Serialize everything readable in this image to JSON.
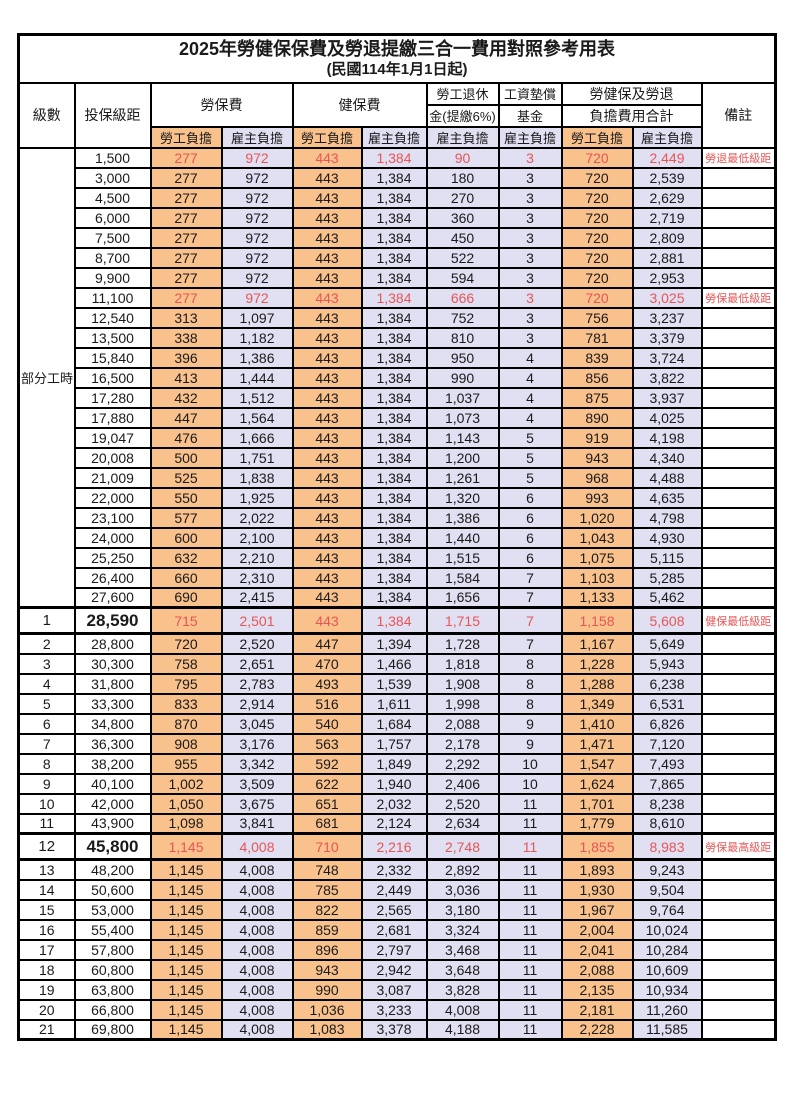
{
  "title": "2025年勞健保保費及勞退提繳三合一費用對照參考用表",
  "subtitle": "(民國114年1月1日起)",
  "header": {
    "level": "級數",
    "bracket": "投保級距",
    "labor_group": "勞保費",
    "health_group": "健保費",
    "pension_line1": "勞工退休",
    "pension_line2": "金(提繳6%)",
    "wage_fund_line1": "工資墊償",
    "wage_fund_line2": "基金",
    "total_line1": "勞健保及勞退",
    "total_line2": "負擔費用合計",
    "remark": "備註",
    "employee": "勞工負擔",
    "employer": "雇主負擔"
  },
  "part_time_label": "部分工時",
  "colors": {
    "employee_bg": "#F9C18C",
    "employer_bg": "#E1DFF2",
    "highlight_text": "#E85555",
    "border": "#000000"
  },
  "rows": [
    {
      "level": null,
      "bracket": "1,500",
      "values": [
        "277",
        "972",
        "443",
        "1,384",
        "90",
        "3",
        "720",
        "2,449"
      ],
      "remark": "勞退最低級距",
      "highlight": true,
      "big": false
    },
    {
      "level": null,
      "bracket": "3,000",
      "values": [
        "277",
        "972",
        "443",
        "1,384",
        "180",
        "3",
        "720",
        "2,539"
      ],
      "remark": "",
      "highlight": false,
      "big": false
    },
    {
      "level": null,
      "bracket": "4,500",
      "values": [
        "277",
        "972",
        "443",
        "1,384",
        "270",
        "3",
        "720",
        "2,629"
      ],
      "remark": "",
      "highlight": false,
      "big": false
    },
    {
      "level": null,
      "bracket": "6,000",
      "values": [
        "277",
        "972",
        "443",
        "1,384",
        "360",
        "3",
        "720",
        "2,719"
      ],
      "remark": "",
      "highlight": false,
      "big": false
    },
    {
      "level": null,
      "bracket": "7,500",
      "values": [
        "277",
        "972",
        "443",
        "1,384",
        "450",
        "3",
        "720",
        "2,809"
      ],
      "remark": "",
      "highlight": false,
      "big": false
    },
    {
      "level": null,
      "bracket": "8,700",
      "values": [
        "277",
        "972",
        "443",
        "1,384",
        "522",
        "3",
        "720",
        "2,881"
      ],
      "remark": "",
      "highlight": false,
      "big": false
    },
    {
      "level": null,
      "bracket": "9,900",
      "values": [
        "277",
        "972",
        "443",
        "1,384",
        "594",
        "3",
        "720",
        "2,953"
      ],
      "remark": "",
      "highlight": false,
      "big": false
    },
    {
      "level": null,
      "bracket": "11,100",
      "values": [
        "277",
        "972",
        "443",
        "1,384",
        "666",
        "3",
        "720",
        "3,025"
      ],
      "remark": "勞保最低級距",
      "highlight": true,
      "big": false
    },
    {
      "level": null,
      "bracket": "12,540",
      "values": [
        "313",
        "1,097",
        "443",
        "1,384",
        "752",
        "3",
        "756",
        "3,237"
      ],
      "remark": "",
      "highlight": false,
      "big": false
    },
    {
      "level": null,
      "bracket": "13,500",
      "values": [
        "338",
        "1,182",
        "443",
        "1,384",
        "810",
        "3",
        "781",
        "3,379"
      ],
      "remark": "",
      "highlight": false,
      "big": false
    },
    {
      "level": null,
      "bracket": "15,840",
      "values": [
        "396",
        "1,386",
        "443",
        "1,384",
        "950",
        "4",
        "839",
        "3,724"
      ],
      "remark": "",
      "highlight": false,
      "big": false
    },
    {
      "level": null,
      "bracket": "16,500",
      "values": [
        "413",
        "1,444",
        "443",
        "1,384",
        "990",
        "4",
        "856",
        "3,822"
      ],
      "remark": "",
      "highlight": false,
      "big": false
    },
    {
      "level": null,
      "bracket": "17,280",
      "values": [
        "432",
        "1,512",
        "443",
        "1,384",
        "1,037",
        "4",
        "875",
        "3,937"
      ],
      "remark": "",
      "highlight": false,
      "big": false
    },
    {
      "level": null,
      "bracket": "17,880",
      "values": [
        "447",
        "1,564",
        "443",
        "1,384",
        "1,073",
        "4",
        "890",
        "4,025"
      ],
      "remark": "",
      "highlight": false,
      "big": false
    },
    {
      "level": null,
      "bracket": "19,047",
      "values": [
        "476",
        "1,666",
        "443",
        "1,384",
        "1,143",
        "5",
        "919",
        "4,198"
      ],
      "remark": "",
      "highlight": false,
      "big": false
    },
    {
      "level": null,
      "bracket": "20,008",
      "values": [
        "500",
        "1,751",
        "443",
        "1,384",
        "1,200",
        "5",
        "943",
        "4,340"
      ],
      "remark": "",
      "highlight": false,
      "big": false
    },
    {
      "level": null,
      "bracket": "21,009",
      "values": [
        "525",
        "1,838",
        "443",
        "1,384",
        "1,261",
        "5",
        "968",
        "4,488"
      ],
      "remark": "",
      "highlight": false,
      "big": false
    },
    {
      "level": null,
      "bracket": "22,000",
      "values": [
        "550",
        "1,925",
        "443",
        "1,384",
        "1,320",
        "6",
        "993",
        "4,635"
      ],
      "remark": "",
      "highlight": false,
      "big": false
    },
    {
      "level": null,
      "bracket": "23,100",
      "values": [
        "577",
        "2,022",
        "443",
        "1,384",
        "1,386",
        "6",
        "1,020",
        "4,798"
      ],
      "remark": "",
      "highlight": false,
      "big": false
    },
    {
      "level": null,
      "bracket": "24,000",
      "values": [
        "600",
        "2,100",
        "443",
        "1,384",
        "1,440",
        "6",
        "1,043",
        "4,930"
      ],
      "remark": "",
      "highlight": false,
      "big": false
    },
    {
      "level": null,
      "bracket": "25,250",
      "values": [
        "632",
        "2,210",
        "443",
        "1,384",
        "1,515",
        "6",
        "1,075",
        "5,115"
      ],
      "remark": "",
      "highlight": false,
      "big": false
    },
    {
      "level": null,
      "bracket": "26,400",
      "values": [
        "660",
        "2,310",
        "443",
        "1,384",
        "1,584",
        "7",
        "1,103",
        "5,285"
      ],
      "remark": "",
      "highlight": false,
      "big": false
    },
    {
      "level": null,
      "bracket": "27,600",
      "values": [
        "690",
        "2,415",
        "443",
        "1,384",
        "1,656",
        "7",
        "1,133",
        "5,462"
      ],
      "remark": "",
      "highlight": false,
      "big": false
    },
    {
      "level": "1",
      "bracket": "28,590",
      "values": [
        "715",
        "2,501",
        "443",
        "1,384",
        "1,715",
        "7",
        "1,158",
        "5,608"
      ],
      "remark": "健保最低級距",
      "highlight": true,
      "big": true
    },
    {
      "level": "2",
      "bracket": "28,800",
      "values": [
        "720",
        "2,520",
        "447",
        "1,394",
        "1,728",
        "7",
        "1,167",
        "5,649"
      ],
      "remark": "",
      "highlight": false,
      "big": false
    },
    {
      "level": "3",
      "bracket": "30,300",
      "values": [
        "758",
        "2,651",
        "470",
        "1,466",
        "1,818",
        "8",
        "1,228",
        "5,943"
      ],
      "remark": "",
      "highlight": false,
      "big": false
    },
    {
      "level": "4",
      "bracket": "31,800",
      "values": [
        "795",
        "2,783",
        "493",
        "1,539",
        "1,908",
        "8",
        "1,288",
        "6,238"
      ],
      "remark": "",
      "highlight": false,
      "big": false
    },
    {
      "level": "5",
      "bracket": "33,300",
      "values": [
        "833",
        "2,914",
        "516",
        "1,611",
        "1,998",
        "8",
        "1,349",
        "6,531"
      ],
      "remark": "",
      "highlight": false,
      "big": false
    },
    {
      "level": "6",
      "bracket": "34,800",
      "values": [
        "870",
        "3,045",
        "540",
        "1,684",
        "2,088",
        "9",
        "1,410",
        "6,826"
      ],
      "remark": "",
      "highlight": false,
      "big": false
    },
    {
      "level": "7",
      "bracket": "36,300",
      "values": [
        "908",
        "3,176",
        "563",
        "1,757",
        "2,178",
        "9",
        "1,471",
        "7,120"
      ],
      "remark": "",
      "highlight": false,
      "big": false
    },
    {
      "level": "8",
      "bracket": "38,200",
      "values": [
        "955",
        "3,342",
        "592",
        "1,849",
        "2,292",
        "10",
        "1,547",
        "7,493"
      ],
      "remark": "",
      "highlight": false,
      "big": false
    },
    {
      "level": "9",
      "bracket": "40,100",
      "values": [
        "1,002",
        "3,509",
        "622",
        "1,940",
        "2,406",
        "10",
        "1,624",
        "7,865"
      ],
      "remark": "",
      "highlight": false,
      "big": false
    },
    {
      "level": "10",
      "bracket": "42,000",
      "values": [
        "1,050",
        "3,675",
        "651",
        "2,032",
        "2,520",
        "11",
        "1,701",
        "8,238"
      ],
      "remark": "",
      "highlight": false,
      "big": false
    },
    {
      "level": "11",
      "bracket": "43,900",
      "values": [
        "1,098",
        "3,841",
        "681",
        "2,124",
        "2,634",
        "11",
        "1,779",
        "8,610"
      ],
      "remark": "",
      "highlight": false,
      "big": false
    },
    {
      "level": "12",
      "bracket": "45,800",
      "values": [
        "1,145",
        "4,008",
        "710",
        "2,216",
        "2,748",
        "11",
        "1,855",
        "8,983"
      ],
      "remark": "勞保最高級距",
      "highlight": true,
      "big": true
    },
    {
      "level": "13",
      "bracket": "48,200",
      "values": [
        "1,145",
        "4,008",
        "748",
        "2,332",
        "2,892",
        "11",
        "1,893",
        "9,243"
      ],
      "remark": "",
      "highlight": false,
      "big": false
    },
    {
      "level": "14",
      "bracket": "50,600",
      "values": [
        "1,145",
        "4,008",
        "785",
        "2,449",
        "3,036",
        "11",
        "1,930",
        "9,504"
      ],
      "remark": "",
      "highlight": false,
      "big": false
    },
    {
      "level": "15",
      "bracket": "53,000",
      "values": [
        "1,145",
        "4,008",
        "822",
        "2,565",
        "3,180",
        "11",
        "1,967",
        "9,764"
      ],
      "remark": "",
      "highlight": false,
      "big": false
    },
    {
      "level": "16",
      "bracket": "55,400",
      "values": [
        "1,145",
        "4,008",
        "859",
        "2,681",
        "3,324",
        "11",
        "2,004",
        "10,024"
      ],
      "remark": "",
      "highlight": false,
      "big": false
    },
    {
      "level": "17",
      "bracket": "57,800",
      "values": [
        "1,145",
        "4,008",
        "896",
        "2,797",
        "3,468",
        "11",
        "2,041",
        "10,284"
      ],
      "remark": "",
      "highlight": false,
      "big": false
    },
    {
      "level": "18",
      "bracket": "60,800",
      "values": [
        "1,145",
        "4,008",
        "943",
        "2,942",
        "3,648",
        "11",
        "2,088",
        "10,609"
      ],
      "remark": "",
      "highlight": false,
      "big": false
    },
    {
      "level": "19",
      "bracket": "63,800",
      "values": [
        "1,145",
        "4,008",
        "990",
        "3,087",
        "3,828",
        "11",
        "2,135",
        "10,934"
      ],
      "remark": "",
      "highlight": false,
      "big": false
    },
    {
      "level": "20",
      "bracket": "66,800",
      "values": [
        "1,145",
        "4,008",
        "1,036",
        "3,233",
        "4,008",
        "11",
        "2,181",
        "11,260"
      ],
      "remark": "",
      "highlight": false,
      "big": false
    },
    {
      "level": "21",
      "bracket": "69,800",
      "values": [
        "1,145",
        "4,008",
        "1,083",
        "3,378",
        "4,188",
        "11",
        "2,228",
        "11,585"
      ],
      "remark": "",
      "highlight": false,
      "big": false
    }
  ]
}
